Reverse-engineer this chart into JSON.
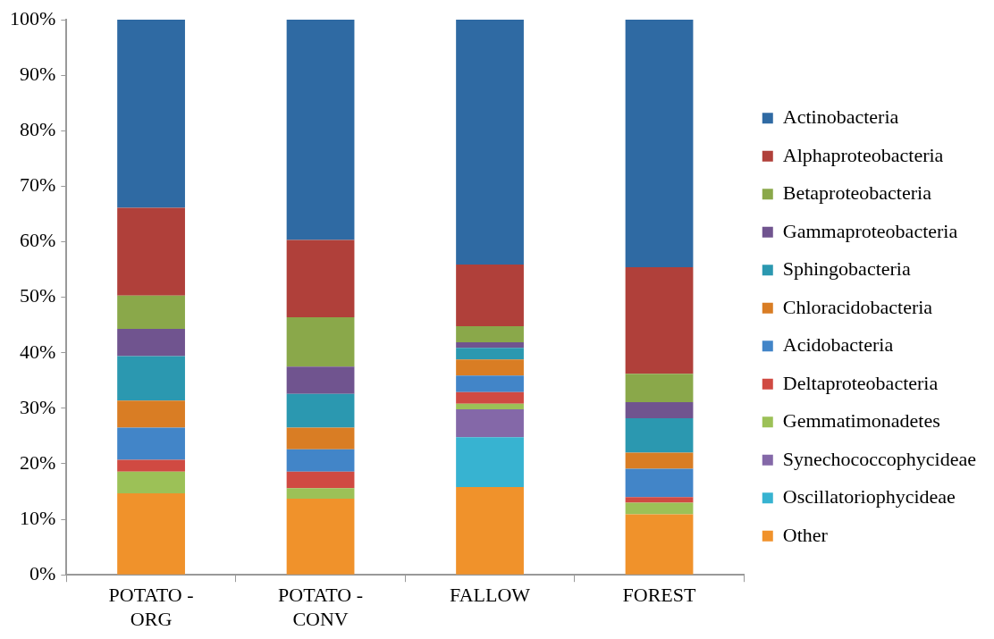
{
  "chart_data": {
    "type": "bar",
    "stacked": true,
    "legend": "right",
    "grid": false,
    "categories": [
      "POTATO - ORG",
      "POTATO - CONV",
      "FALLOW",
      "FOREST"
    ],
    "ylim": [
      0,
      100
    ],
    "yticks": [
      {
        "value": 0,
        "label": "0%"
      },
      {
        "value": 10,
        "label": "10%"
      },
      {
        "value": 20,
        "label": "20%"
      },
      {
        "value": 30,
        "label": "30%"
      },
      {
        "value": 40,
        "label": "40%"
      },
      {
        "value": 50,
        "label": "50%"
      },
      {
        "value": 60,
        "label": "60%"
      },
      {
        "value": 70,
        "label": "70%"
      },
      {
        "value": 80,
        "label": "80%"
      },
      {
        "value": 90,
        "label": "90%"
      },
      {
        "value": 100,
        "label": "100%"
      }
    ],
    "series": [
      {
        "name": "Other",
        "color": "#f0922b",
        "values": [
          14.7,
          13.7,
          15.8,
          10.9
        ]
      },
      {
        "name": "Oscillatoriophycideae",
        "color": "#37b3d1",
        "values": [
          0,
          0,
          9.0,
          0
        ]
      },
      {
        "name": "Synechococcophycideae",
        "color": "#8468a8",
        "values": [
          0,
          0,
          5.0,
          0
        ]
      },
      {
        "name": "Gemmatimonadetes",
        "color": "#9cc157",
        "values": [
          3.9,
          1.9,
          1.0,
          2.1
        ]
      },
      {
        "name": "Deltaproteobacteria",
        "color": "#d04a42",
        "values": [
          2.1,
          3.0,
          2.1,
          1.0
        ]
      },
      {
        "name": "Acidobacteria",
        "color": "#4285c8",
        "values": [
          5.8,
          4.0,
          3.0,
          5.1
        ]
      },
      {
        "name": "Chloracidobacteria",
        "color": "#d97d24",
        "values": [
          4.9,
          3.9,
          2.9,
          2.9
        ]
      },
      {
        "name": "Sphingobacteria",
        "color": "#2b98b0",
        "values": [
          8.0,
          6.1,
          2.1,
          6.2
        ]
      },
      {
        "name": "Gammaproteobacteria",
        "color": "#70548f",
        "values": [
          4.9,
          4.9,
          1.0,
          2.9
        ]
      },
      {
        "name": "Betaproteobacteria",
        "color": "#8aa84a",
        "values": [
          6.0,
          8.9,
          2.9,
          5.1
        ]
      },
      {
        "name": "Alphaproteobacteria",
        "color": "#b0403a",
        "values": [
          15.8,
          13.9,
          11.1,
          19.2
        ]
      },
      {
        "name": "Actinobacteria",
        "color": "#2f6aa3",
        "values": [
          33.9,
          39.7,
          44.1,
          44.6
        ]
      }
    ]
  }
}
